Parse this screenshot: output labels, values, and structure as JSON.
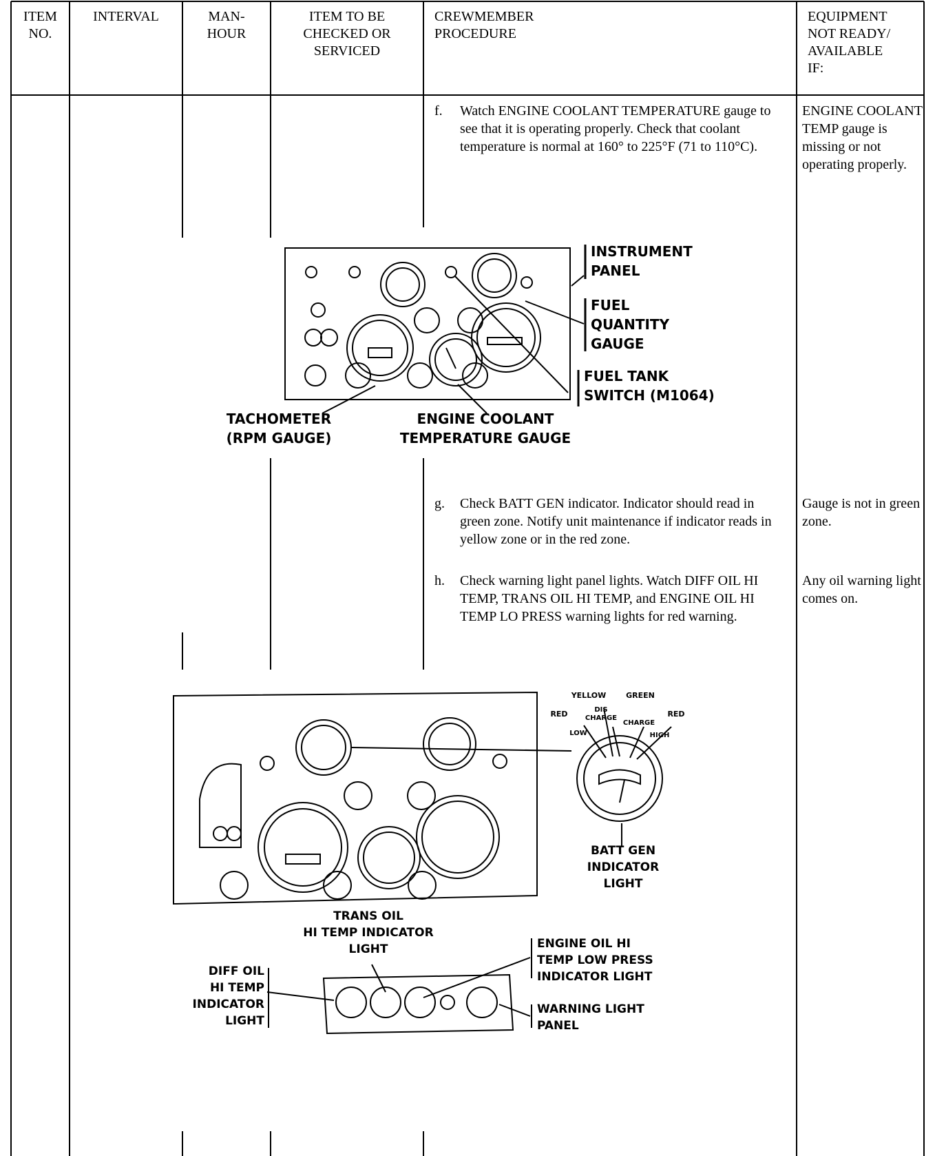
{
  "header": {
    "cells": [
      [
        "ITEM",
        "NO."
      ],
      [
        "INTERVAL"
      ],
      [
        "MAN-",
        "HOUR"
      ],
      [
        "ITEM TO BE",
        "CHECKED OR",
        "SERVICED"
      ],
      [
        "CREWMEMBER",
        "PROCEDURE"
      ],
      [
        "EQUIPMENT",
        "NOT READY/",
        "AVAILABLE",
        "IF:"
      ]
    ]
  },
  "rows": [
    {
      "step": "f.",
      "procedure": "Watch ENGINE COOLANT TEMPERATURE gauge to see that it is operating properly. Check that coolant temperature is normal at 160° to 225°F (71 to 110°C).",
      "not_ready": "ENGINE COOLANT TEMP gauge is missing or not operating properly."
    },
    {
      "step": "g.",
      "procedure": "Check BATT GEN indicator. Indicator should read in green zone. Notify unit maintenance if indicator reads in yellow zone or in the red zone.",
      "not_ready": "Gauge is not in green zone."
    },
    {
      "step": "h.",
      "procedure": "Check warning light panel lights. Watch DIFF OIL HI TEMP, TRANS OIL HI TEMP, and ENGINE OIL HI TEMP LO PRESS warning lights for red warning.",
      "not_ready": "Any oil warning light comes on."
    }
  ],
  "figures": [
    {
      "labels": [
        [
          "INSTRUMENT",
          "PANEL"
        ],
        [
          "FUEL",
          "QUANTITY",
          "GAUGE"
        ],
        [
          "FUEL TANK",
          "SWITCH (M1064)"
        ],
        [
          "TACHOMETER",
          "(RPM GAUGE)"
        ],
        [
          "ENGINE COOLANT",
          "TEMPERATURE GAUGE"
        ]
      ]
    },
    {
      "labels": [
        [
          "YELLOW"
        ],
        [
          "GREEN"
        ],
        [
          "RED"
        ],
        [
          "DIS",
          "CHARGE"
        ],
        [
          "CHARGE"
        ],
        [
          "RED"
        ],
        [
          "LOW"
        ],
        [
          "HIGH"
        ],
        [
          "BATT GEN",
          "INDICATOR",
          "LIGHT"
        ],
        [
          "TRANS OIL",
          "HI TEMP INDICATOR",
          "LIGHT"
        ],
        [
          "ENGINE OIL HI",
          "TEMP LOW PRESS",
          "INDICATOR LIGHT"
        ],
        [
          "DIFF OIL",
          "HI TEMP",
          "INDICATOR",
          "LIGHT"
        ],
        [
          "WARNING LIGHT",
          "PANEL"
        ]
      ]
    }
  ]
}
